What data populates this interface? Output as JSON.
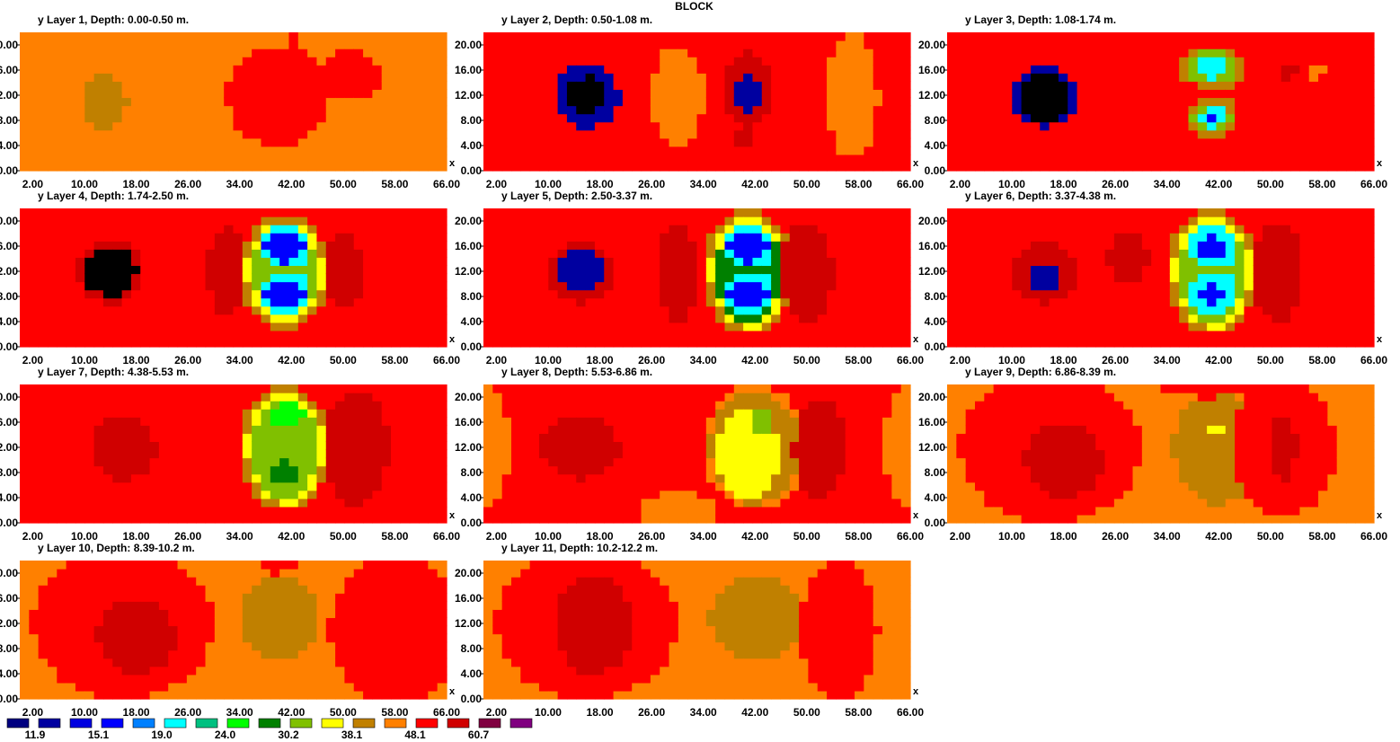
{
  "title": "BLOCK",
  "colors": {
    "palette": [
      "#000080",
      "#0000a0",
      "#0000e0",
      "#0000ff",
      "#0080ff",
      "#00ffff",
      "#00c080",
      "#00ff00",
      "#008000",
      "#80c000",
      "#ffff00",
      "#c08000",
      "#ff8000",
      "#ff0000",
      "#d00000",
      "#800040",
      "#800080"
    ],
    "levels": [
      "#800080",
      "#800040",
      "#d00000",
      "#ff0000",
      "#ff8000",
      "#c08000",
      "#ffff00",
      "#80c000",
      "#008000",
      "#00ff00",
      "#00c080",
      "#00ffff",
      "#0080ff",
      "#0000ff",
      "#0000e0",
      "#0000a0"
    ]
  },
  "chart_data": {
    "type": "heatmap",
    "xlabel": "x",
    "ylabel": "y",
    "xlim": [
      0,
      66
    ],
    "ylim": [
      0,
      22
    ],
    "x_ticks": [
      "2.00",
      "10.00",
      "18.00",
      "26.00",
      "34.00",
      "42.00",
      "50.00",
      "58.00",
      "66.00"
    ],
    "y_ticks": [
      "0.00",
      "4.00",
      "8.00",
      "12.00",
      "16.00",
      "20.00"
    ],
    "colorbar": {
      "labels": [
        "11.9",
        "15.1",
        "19.0",
        "24.0",
        "30.2",
        "38.1",
        "48.1",
        "60.7"
      ]
    },
    "panels": [
      {
        "title": "Layer 1, Depth: 0.00-0.50 m.",
        "bg": 4,
        "blobs": [
          [
            13,
            11,
            3.5,
            4,
            5
          ],
          [
            42,
            16,
            1.5,
            6,
            3
          ],
          [
            42,
            8,
            1.5,
            2,
            6
          ],
          [
            40,
            12,
            8,
            8,
            3
          ],
          [
            51,
            15,
            5,
            4,
            3
          ]
        ]
      },
      {
        "title": "Layer 2, Depth: 0.50-1.08 m.",
        "bg": 3,
        "blobs": [
          [
            16,
            12,
            5,
            5,
            15
          ],
          [
            16,
            12,
            3,
            3,
            16
          ],
          [
            41,
            13,
            4,
            6,
            2
          ],
          [
            41,
            12,
            2,
            3,
            15
          ],
          [
            30,
            12,
            4,
            8,
            4
          ],
          [
            57,
            12,
            4,
            10,
            4
          ],
          [
            40,
            5,
            2,
            1.5,
            2
          ]
        ]
      },
      {
        "title": "Layer 3, Depth: 1.08-1.74 m.",
        "bg": 3,
        "blobs": [
          [
            15,
            12,
            5,
            5,
            15
          ],
          [
            15,
            12,
            4,
            4,
            16
          ],
          [
            41,
            16.5,
            5,
            3.5,
            5
          ],
          [
            41,
            16.5,
            4,
            2.5,
            7
          ],
          [
            41,
            16.5,
            2.5,
            1.8,
            11
          ],
          [
            41,
            8.5,
            4,
            3.5,
            5
          ],
          [
            41,
            8.5,
            3,
            2.5,
            7
          ],
          [
            41,
            8.5,
            2,
            1.8,
            11
          ],
          [
            41,
            8.5,
            1,
            1,
            13
          ],
          [
            57,
            16,
            1.5,
            1.5,
            4
          ],
          [
            53,
            16,
            1,
            1.5,
            2
          ]
        ]
      },
      {
        "title": "Layer 4, Depth: 1.74-2.50 m.",
        "bg": 3,
        "blobs": [
          [
            14,
            12,
            5,
            5,
            2
          ],
          [
            14,
            12,
            4,
            4,
            16
          ],
          [
            41,
            12,
            7,
            9,
            5
          ],
          [
            41,
            12,
            6,
            8,
            6
          ],
          [
            41,
            12,
            5,
            7,
            7
          ],
          [
            41,
            16,
            4,
            3.5,
            11
          ],
          [
            41,
            16,
            3,
            2.5,
            13
          ],
          [
            41,
            8.5,
            4,
            3.5,
            11
          ],
          [
            41,
            8.5,
            3,
            2.5,
            13
          ],
          [
            32,
            12,
            3,
            7,
            2
          ],
          [
            50,
            12,
            3,
            6,
            2
          ]
        ]
      },
      {
        "title": "Layer 5, Depth: 2.50-3.37 m.",
        "bg": 3,
        "blobs": [
          [
            15,
            12,
            5,
            5,
            2
          ],
          [
            15,
            12,
            3.5,
            3.5,
            15
          ],
          [
            41,
            12,
            7,
            10,
            5
          ],
          [
            41,
            12,
            6,
            9,
            6
          ],
          [
            41,
            12,
            5,
            8,
            8
          ],
          [
            41,
            16,
            4,
            3.5,
            11
          ],
          [
            41,
            16,
            3,
            2.5,
            13
          ],
          [
            41,
            8.5,
            4,
            3.5,
            11
          ],
          [
            41,
            8.5,
            3,
            2.5,
            13
          ],
          [
            30,
            12,
            3,
            8,
            2
          ],
          [
            50,
            12,
            4,
            8,
            2
          ]
        ]
      },
      {
        "title": "Layer 6, Depth: 3.37-4.38 m.",
        "bg": 3,
        "blobs": [
          [
            15,
            12,
            5,
            5,
            2
          ],
          [
            15,
            11,
            2,
            2,
            15
          ],
          [
            41,
            12,
            7,
            10,
            5
          ],
          [
            41,
            12,
            6,
            9,
            6
          ],
          [
            41,
            12,
            5,
            8,
            7
          ],
          [
            41,
            16,
            4,
            3.5,
            11
          ],
          [
            41,
            16,
            2,
            1.8,
            13
          ],
          [
            41,
            8.5,
            4,
            3.5,
            11
          ],
          [
            41,
            8.5,
            2,
            1.5,
            13
          ],
          [
            28,
            14,
            3,
            4,
            2
          ],
          [
            51,
            12,
            4,
            8,
            2
          ]
        ]
      },
      {
        "title": "Layer 7, Depth: 4.38-5.53 m.",
        "bg": 3,
        "blobs": [
          [
            16,
            12,
            5,
            5,
            2
          ],
          [
            41,
            12,
            7,
            10,
            5
          ],
          [
            41,
            12,
            6,
            9,
            6
          ],
          [
            41,
            12,
            5,
            8,
            7
          ],
          [
            41,
            17,
            3,
            2,
            9
          ],
          [
            41,
            8,
            2,
            2,
            8
          ],
          [
            52,
            12,
            5,
            9,
            2
          ]
        ]
      },
      {
        "title": "Layer 8, Depth: 5.53-6.86 m.",
        "bg": 3,
        "blobs": [
          [
            0,
            12,
            4,
            10,
            4
          ],
          [
            66,
            12,
            4,
            10,
            4
          ],
          [
            15,
            12,
            6,
            5,
            2
          ],
          [
            42,
            12,
            8,
            10,
            4
          ],
          [
            42,
            12,
            7,
            9,
            5
          ],
          [
            41,
            11,
            5,
            7,
            6
          ],
          [
            43,
            16,
            2,
            2,
            7
          ],
          [
            52,
            12,
            4,
            8,
            2
          ],
          [
            30,
            2,
            6,
            3,
            4
          ]
        ]
      },
      {
        "title": "Layer 9, Depth: 6.86-8.39 m.",
        "bg": 4,
        "blobs": [
          [
            16,
            12,
            14,
            12,
            3
          ],
          [
            18,
            10,
            6,
            6,
            2
          ],
          [
            42,
            12,
            7,
            9,
            5
          ],
          [
            42,
            15,
            1.5,
            1,
            6
          ],
          [
            52,
            12,
            8,
            11,
            3
          ],
          [
            52,
            12,
            2,
            5,
            2
          ],
          [
            40,
            22,
            8,
            2,
            3
          ]
        ]
      },
      {
        "title": "Layer 10, Depth: 8.39-10.2 m.",
        "bg": 4,
        "blobs": [
          [
            16,
            12,
            14,
            12,
            3
          ],
          [
            18,
            10,
            6,
            6,
            2
          ],
          [
            40,
            13,
            6,
            7,
            5
          ],
          [
            58,
            11,
            10,
            12,
            3
          ],
          [
            40,
            22,
            3,
            2,
            3
          ]
        ]
      },
      {
        "title": "Layer 11, Depth: 10.2-12.2 m.",
        "bg": 4,
        "blobs": [
          [
            16,
            12,
            14,
            12,
            3
          ],
          [
            17,
            12,
            6,
            8,
            2
          ],
          [
            42,
            13,
            7,
            7,
            5
          ],
          [
            55,
            11,
            6,
            11,
            3
          ]
        ]
      }
    ]
  }
}
